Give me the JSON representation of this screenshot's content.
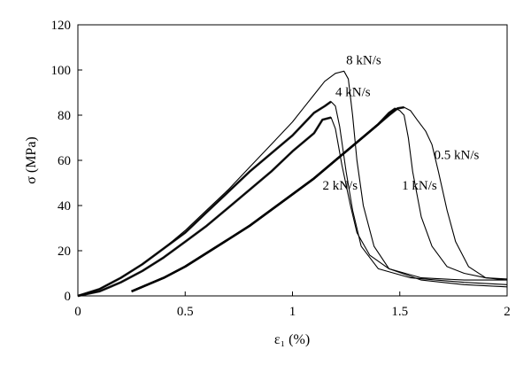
{
  "chart_data": {
    "type": "line",
    "title": "",
    "xlabel": "ε₁ (%)",
    "ylabel": "σ (MPa)",
    "xlim": [
      0,
      2
    ],
    "ylim": [
      0,
      120
    ],
    "x_ticks": [
      0,
      0.5,
      1,
      1.5,
      2
    ],
    "x_tick_labels": [
      "0",
      "0.5",
      "1",
      "1.5",
      "2"
    ],
    "y_ticks": [
      0,
      20,
      40,
      60,
      80,
      100,
      120
    ],
    "y_tick_labels": [
      "0",
      "20",
      "40",
      "60",
      "80",
      "100",
      "120"
    ],
    "grid": false,
    "legend": "none",
    "series": [
      {
        "name": "8 kN/s",
        "rate_kN_per_s": 8,
        "hysteresis": false,
        "points": [
          [
            0,
            0
          ],
          [
            0.1,
            3
          ],
          [
            0.2,
            8
          ],
          [
            0.3,
            14
          ],
          [
            0.4,
            21
          ],
          [
            0.5,
            29
          ],
          [
            0.6,
            38
          ],
          [
            0.7,
            47
          ],
          [
            0.8,
            57
          ],
          [
            0.9,
            67
          ],
          [
            1.0,
            77
          ],
          [
            1.05,
            83
          ],
          [
            1.1,
            89
          ],
          [
            1.15,
            95
          ],
          [
            1.2,
            98.5
          ],
          [
            1.24,
            99.5
          ],
          [
            1.26,
            96
          ],
          [
            1.28,
            80
          ],
          [
            1.3,
            60
          ],
          [
            1.33,
            40
          ],
          [
            1.38,
            22
          ],
          [
            1.45,
            12
          ],
          [
            1.6,
            7
          ],
          [
            1.8,
            5
          ],
          [
            2.0,
            4
          ]
        ]
      },
      {
        "name": "4 kN/s",
        "rate_kN_per_s": 4,
        "hysteresis": true,
        "points": [
          [
            0,
            0
          ],
          [
            0.1,
            3
          ],
          [
            0.2,
            8
          ],
          [
            0.3,
            14
          ],
          [
            0.4,
            21
          ],
          [
            0.5,
            28
          ],
          [
            0.6,
            37
          ],
          [
            0.7,
            46
          ],
          [
            0.8,
            55
          ],
          [
            0.9,
            63
          ],
          [
            1.0,
            71
          ],
          [
            1.05,
            76
          ],
          [
            1.1,
            81
          ],
          [
            1.15,
            84
          ],
          [
            1.18,
            86
          ],
          [
            1.2,
            84
          ],
          [
            1.22,
            75
          ],
          [
            1.25,
            55
          ],
          [
            1.28,
            38
          ],
          [
            1.32,
            22
          ],
          [
            1.4,
            12
          ],
          [
            1.55,
            8
          ],
          [
            1.8,
            6
          ],
          [
            2.0,
            5
          ]
        ]
      },
      {
        "name": "2 kN/s",
        "rate_kN_per_s": 2,
        "hysteresis": true,
        "points": [
          [
            0,
            0
          ],
          [
            0.1,
            2
          ],
          [
            0.2,
            6
          ],
          [
            0.3,
            11
          ],
          [
            0.4,
            17
          ],
          [
            0.5,
            24
          ],
          [
            0.6,
            31
          ],
          [
            0.7,
            39
          ],
          [
            0.8,
            47
          ],
          [
            0.9,
            55
          ],
          [
            1.0,
            64
          ],
          [
            1.05,
            68
          ],
          [
            1.1,
            72
          ],
          [
            1.14,
            78
          ],
          [
            1.18,
            79
          ],
          [
            1.2,
            74
          ],
          [
            1.23,
            58
          ],
          [
            1.27,
            40
          ],
          [
            1.3,
            28
          ],
          [
            1.36,
            18
          ],
          [
            1.45,
            12
          ],
          [
            1.6,
            8
          ],
          [
            1.8,
            7
          ],
          [
            2.0,
            7
          ]
        ]
      },
      {
        "name": "1 kN/s",
        "rate_kN_per_s": 1,
        "hysteresis": true,
        "points": [
          [
            0.25,
            2
          ],
          [
            0.4,
            8
          ],
          [
            0.5,
            13
          ],
          [
            0.6,
            19
          ],
          [
            0.7,
            25
          ],
          [
            0.8,
            31
          ],
          [
            0.9,
            38
          ],
          [
            1.0,
            45
          ],
          [
            1.1,
            52
          ],
          [
            1.2,
            60
          ],
          [
            1.3,
            68
          ],
          [
            1.4,
            76
          ],
          [
            1.45,
            81
          ],
          [
            1.48,
            83
          ],
          [
            1.5,
            82
          ],
          [
            1.52,
            80
          ],
          [
            1.54,
            70
          ],
          [
            1.56,
            55
          ],
          [
            1.6,
            35
          ],
          [
            1.65,
            22
          ],
          [
            1.72,
            13
          ],
          [
            1.8,
            10
          ],
          [
            1.9,
            8
          ],
          [
            2.0,
            7.5
          ]
        ]
      },
      {
        "name": "0.5 kN/s",
        "rate_kN_per_s": 0.5,
        "hysteresis": true,
        "points": [
          [
            0.25,
            2
          ],
          [
            0.4,
            8
          ],
          [
            0.5,
            13
          ],
          [
            0.6,
            19
          ],
          [
            0.7,
            25
          ],
          [
            0.8,
            31
          ],
          [
            0.9,
            38
          ],
          [
            1.0,
            45
          ],
          [
            1.1,
            52
          ],
          [
            1.2,
            60
          ],
          [
            1.3,
            68
          ],
          [
            1.4,
            76
          ],
          [
            1.45,
            80
          ],
          [
            1.49,
            83
          ],
          [
            1.52,
            83.5
          ],
          [
            1.55,
            82
          ],
          [
            1.58,
            78
          ],
          [
            1.62,
            73
          ],
          [
            1.65,
            67
          ],
          [
            1.68,
            55
          ],
          [
            1.72,
            38
          ],
          [
            1.76,
            24
          ],
          [
            1.82,
            13
          ],
          [
            1.9,
            8
          ],
          [
            2.0,
            7
          ]
        ]
      }
    ],
    "annotations": [
      {
        "text": "8 kN/s",
        "x": 1.25,
        "y": 102.5
      },
      {
        "text": "4 kN/s",
        "x": 1.2,
        "y": 88.5
      },
      {
        "text": "0.5 kN/s",
        "x": 1.66,
        "y": 60.5
      },
      {
        "text": "2 kN/s",
        "x": 1.14,
        "y": 47
      },
      {
        "text": "1 kN/s",
        "x": 1.51,
        "y": 47
      }
    ]
  }
}
